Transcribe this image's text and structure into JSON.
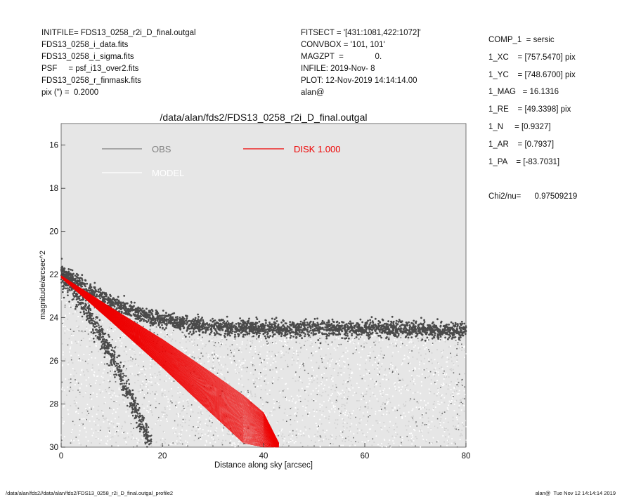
{
  "header_left": [
    "INITFILE= FDS13_0258_r2i_D_final.outgal",
    "FDS13_0258_i_data.fits",
    "FDS13_0258_i_sigma.fits",
    "PSF     = psf_i13_over2.fits",
    "FDS13_0258_r_finmask.fits",
    "pix (\") =  0.2000"
  ],
  "header_middle": [
    "FITSECT = '[431:1081,422:1072]'",
    "CONVBOX = '101, 101'",
    "MAGZPT  =              0.",
    "INFILE: 2019-Nov- 8",
    "PLOT: 12-Nov-2019 14:14:14.00",
    "alan@"
  ],
  "parameters": [
    "COMP_1  = sersic",
    "1_XC    = [757.5470] pix",
    "1_YC    = [748.6700] pix",
    "1_MAG   = 16.1316",
    "1_RE    = [49.3398] pix",
    "1_N     = [0.9327]",
    "1_AR    = [0.7937]",
    "1_PA    = [-83.7031]"
  ],
  "chi2": "Chi2/nu=      0.97509219",
  "footer_left": "/data/alan/fds2//data/alan/fds2/FDS13_0258_r2i_D_final.outgal_profile2",
  "footer_right": "alan@  Tue Nov 12 14:14:14 2019",
  "colors": {
    "panel": "#e6e6e6",
    "obs": "#4a4a4a",
    "obs_faint": "#f4f4f4",
    "model": "#ffffff",
    "disk": "#ee0000"
  },
  "chart_data": {
    "type": "scatter",
    "title": "/data/alan/fds2/FDS13_0258_r2i_D_final.outgal",
    "xlabel": "Distance along sky [arcsec]",
    "ylabel": "magnitude/arcsec^2",
    "xlim": [
      0,
      80
    ],
    "ylim": [
      30,
      15
    ],
    "y_inverted": true,
    "xticks": [
      0,
      20,
      40,
      60,
      80
    ],
    "yticks": [
      16,
      18,
      20,
      22,
      24,
      26,
      28,
      30
    ],
    "grid": false,
    "legend": [
      {
        "label": "OBS",
        "color": "#808080"
      },
      {
        "label": "MODEL",
        "color": "#ffffff"
      },
      {
        "label": "DISK  1.000",
        "color": "#ee0000"
      }
    ],
    "series": [
      {
        "name": "OBS",
        "description_points": "dense dark band (major axis)",
        "x": [
          0,
          5,
          10,
          15,
          20,
          25,
          30,
          35,
          40,
          45,
          50,
          55,
          60,
          65,
          70,
          75,
          80
        ],
        "y": [
          21.9,
          22.6,
          23.3,
          23.8,
          24.1,
          24.3,
          24.4,
          24.45,
          24.5,
          24.5,
          24.5,
          24.5,
          24.5,
          24.5,
          24.55,
          24.6,
          24.6
        ]
      },
      {
        "name": "OBS",
        "x": [
          0,
          5,
          10,
          15,
          18
        ],
        "y": [
          22.0,
          23.6,
          25.8,
          28.4,
          30.0
        ]
      },
      {
        "name": "DISK  1.000",
        "x": [
          0,
          10,
          20,
          30,
          36,
          40,
          43
        ],
        "y_upper": [
          22.05,
          23.55,
          25.0,
          26.6,
          27.6,
          28.4,
          29.8
        ],
        "y_lower": [
          22.15,
          24.2,
          26.3,
          28.5,
          29.8,
          30.0,
          30.0
        ]
      }
    ]
  }
}
